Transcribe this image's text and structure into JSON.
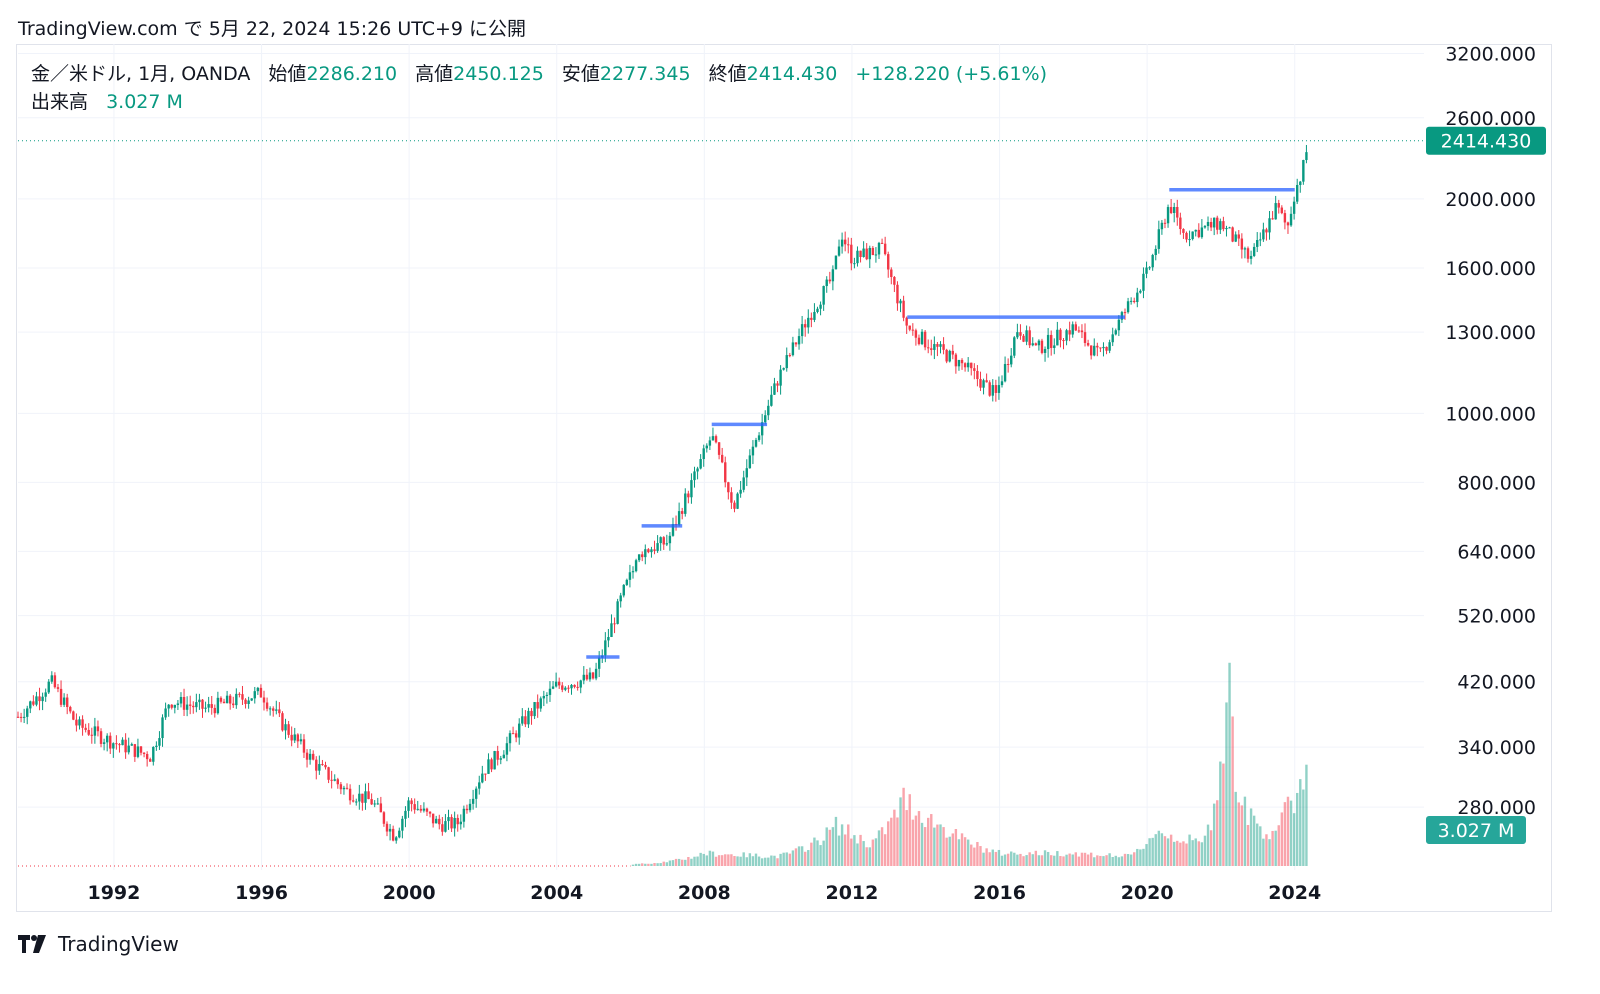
{
  "header": {
    "publish_text": "TradingView.com で 5月 22, 2024 15:26 UTC+9 に公開"
  },
  "legend": {
    "symbol": "金／米ドル, 1月, OANDA",
    "open_label": "始値",
    "open_value": "2286.210",
    "high_label": "高値",
    "high_value": "2450.125",
    "low_label": "安値",
    "low_value": "2277.345",
    "close_label": "終値",
    "close_value": "2414.430",
    "change": "+128.220 (+5.61%)",
    "volume_label": "出来高",
    "volume_value": "3.027 M"
  },
  "footer": {
    "brand": "TradingView"
  },
  "colors": {
    "up": "#089981",
    "down": "#f23645",
    "level": "#2962ff",
    "grid": "#f0f3fa"
  },
  "chart_data": {
    "type": "candlestick",
    "scale": "log",
    "timeframe": "1M",
    "x_axis_ticks": [
      "1992",
      "1996",
      "2000",
      "2004",
      "2008",
      "2012",
      "2016",
      "2020",
      "2024"
    ],
    "y_axis_ticks": [
      "3200.000",
      "2600.000",
      "2000.000",
      "1600.000",
      "1300.000",
      "1000.000",
      "800.000",
      "640.000",
      "520.000",
      "420.000",
      "340.000",
      "280.000"
    ],
    "current_price_label": "2414.430",
    "current_volume_label": "3.027 M",
    "series": [
      {
        "name": "price",
        "x": [
          1989.4,
          1990.3,
          1991.0,
          1992.0,
          1993.0,
          1993.5,
          1994.5,
          1996.0,
          1996.5,
          1997.5,
          1998.3,
          1999.0,
          1999.6,
          2000.0,
          2000.8,
          2001.3,
          2002.0,
          2002.5,
          2003.2,
          2004.0,
          2005.0,
          2005.8,
          2006.3,
          2007.0,
          2007.8,
          2008.2,
          2008.8,
          2009.5,
          2010.0,
          2010.8,
          2011.5,
          2011.7,
          2012.0,
          2012.8,
          2013.5,
          2014.0,
          2015.0,
          2015.9,
          2016.5,
          2017.0,
          2018.0,
          2018.7,
          2019.5,
          2020.0,
          2020.6,
          2021.0,
          2022.0,
          2022.8,
          2023.5,
          2023.8,
          2024.0,
          2024.2,
          2024.38
        ],
        "values": [
          375,
          420,
          365,
          345,
          330,
          395,
          385,
          405,
          370,
          320,
          295,
          285,
          255,
          285,
          265,
          265,
          315,
          335,
          375,
          415,
          425,
          560,
          640,
          660,
          830,
          930,
          740,
          950,
          1120,
          1360,
          1560,
          1800,
          1650,
          1700,
          1320,
          1260,
          1170,
          1060,
          1320,
          1230,
          1320,
          1200,
          1420,
          1570,
          1970,
          1780,
          1850,
          1640,
          1950,
          1820,
          2050,
          2180,
          2414
        ]
      },
      {
        "name": "volume",
        "x": [
          2006,
          2008,
          2010,
          2011.6,
          2012.5,
          2013.4,
          2014.5,
          2016,
          2018,
          2019.5,
          2020.2,
          2021.5,
          2022.2,
          2022.5,
          2023.3,
          2024.3
        ],
        "values": [
          0.05,
          0.4,
          0.3,
          1.3,
          0.7,
          2.1,
          1.2,
          0.4,
          0.4,
          0.3,
          1.1,
          0.7,
          6.5,
          2.0,
          1.0,
          3.027
        ]
      },
      {
        "name": "resistance",
        "levels": [
          {
            "from": 2004.8,
            "to": 2005.7,
            "price": 455
          },
          {
            "from": 2006.3,
            "to": 2007.4,
            "price": 695
          },
          {
            "from": 2008.2,
            "to": 2009.7,
            "price": 965
          },
          {
            "from": 2013.5,
            "to": 2019.4,
            "price": 1365
          },
          {
            "from": 2020.6,
            "to": 2024.0,
            "price": 2060
          }
        ]
      }
    ]
  }
}
